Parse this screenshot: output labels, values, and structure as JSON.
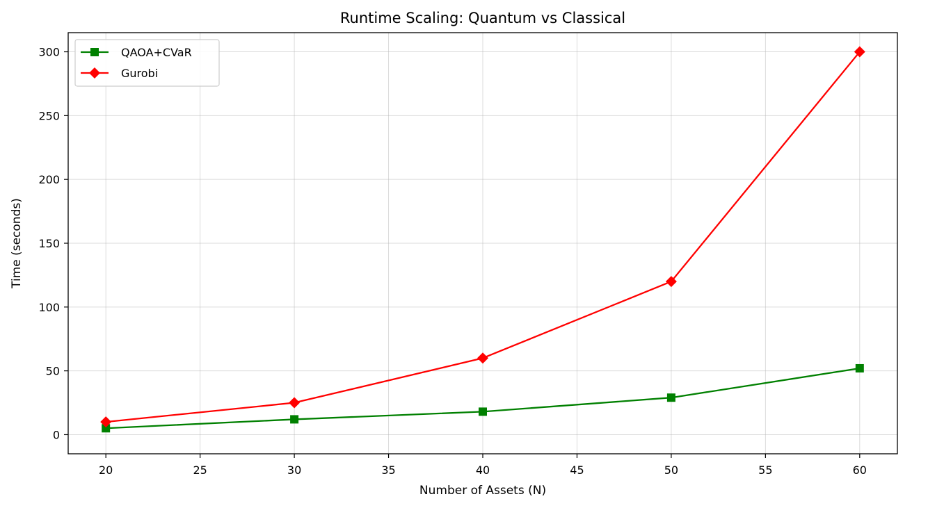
{
  "chart_data": {
    "type": "line",
    "title": "Runtime Scaling: Quantum vs Classical",
    "xlabel": "Number of Assets (N)",
    "ylabel": "Time (seconds)",
    "xlim": [
      18,
      62
    ],
    "ylim": [
      -15,
      315
    ],
    "xticks": [
      20,
      25,
      30,
      35,
      40,
      45,
      50,
      55,
      60
    ],
    "yticks": [
      0,
      50,
      100,
      150,
      200,
      250,
      300
    ],
    "grid": true,
    "legend_position": "top-left",
    "x": [
      20,
      30,
      40,
      50,
      60
    ],
    "series": [
      {
        "name": "QAOA+CVaR",
        "values": [
          5,
          12,
          18,
          29,
          52
        ],
        "color": "#008000",
        "marker": "square"
      },
      {
        "name": "Gurobi",
        "values": [
          10,
          25,
          60,
          120,
          300
        ],
        "color": "#ff0000",
        "marker": "diamond"
      }
    ]
  }
}
